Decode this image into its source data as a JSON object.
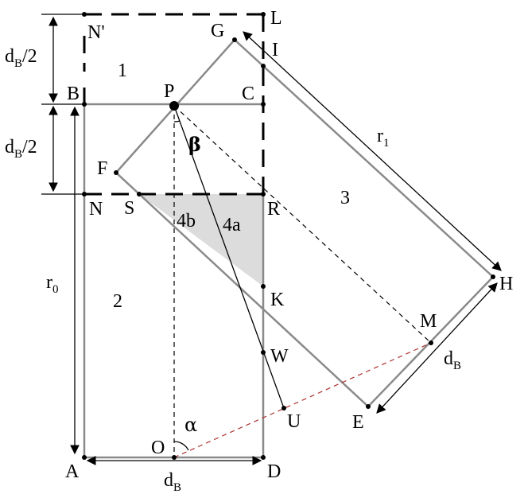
{
  "points": {
    "A": "A",
    "B": "B",
    "C": "C",
    "D": "D",
    "E": "E",
    "F": "F",
    "G": "G",
    "H": "H",
    "I": "I",
    "K": "K",
    "L": "L",
    "M": "M",
    "N": "N",
    "N_prime": "N'",
    "O": "O",
    "P": "P",
    "R": "R",
    "S": "S",
    "U": "U",
    "W": "W"
  },
  "regions": {
    "r1": "1",
    "r2": "2",
    "r3": "3",
    "r4a": "4a",
    "r4b": "4b"
  },
  "angles": {
    "alpha": "α",
    "beta": "β"
  },
  "dimensions": {
    "top_half": {
      "main": "d",
      "sub": "B",
      "tail": "/2"
    },
    "bottom_half": {
      "main": "d",
      "sub": "B",
      "tail": "/2"
    },
    "r0": {
      "main": "r",
      "sub": "0"
    },
    "r1": {
      "main": "r",
      "sub": "1"
    },
    "width_bottom": {
      "main": "d",
      "sub": "B"
    },
    "width_right": {
      "main": "d",
      "sub": "B"
    }
  },
  "colors": {
    "edge": "#8a8a8a",
    "line": "#000000",
    "shaded": "#dcdcdc"
  }
}
